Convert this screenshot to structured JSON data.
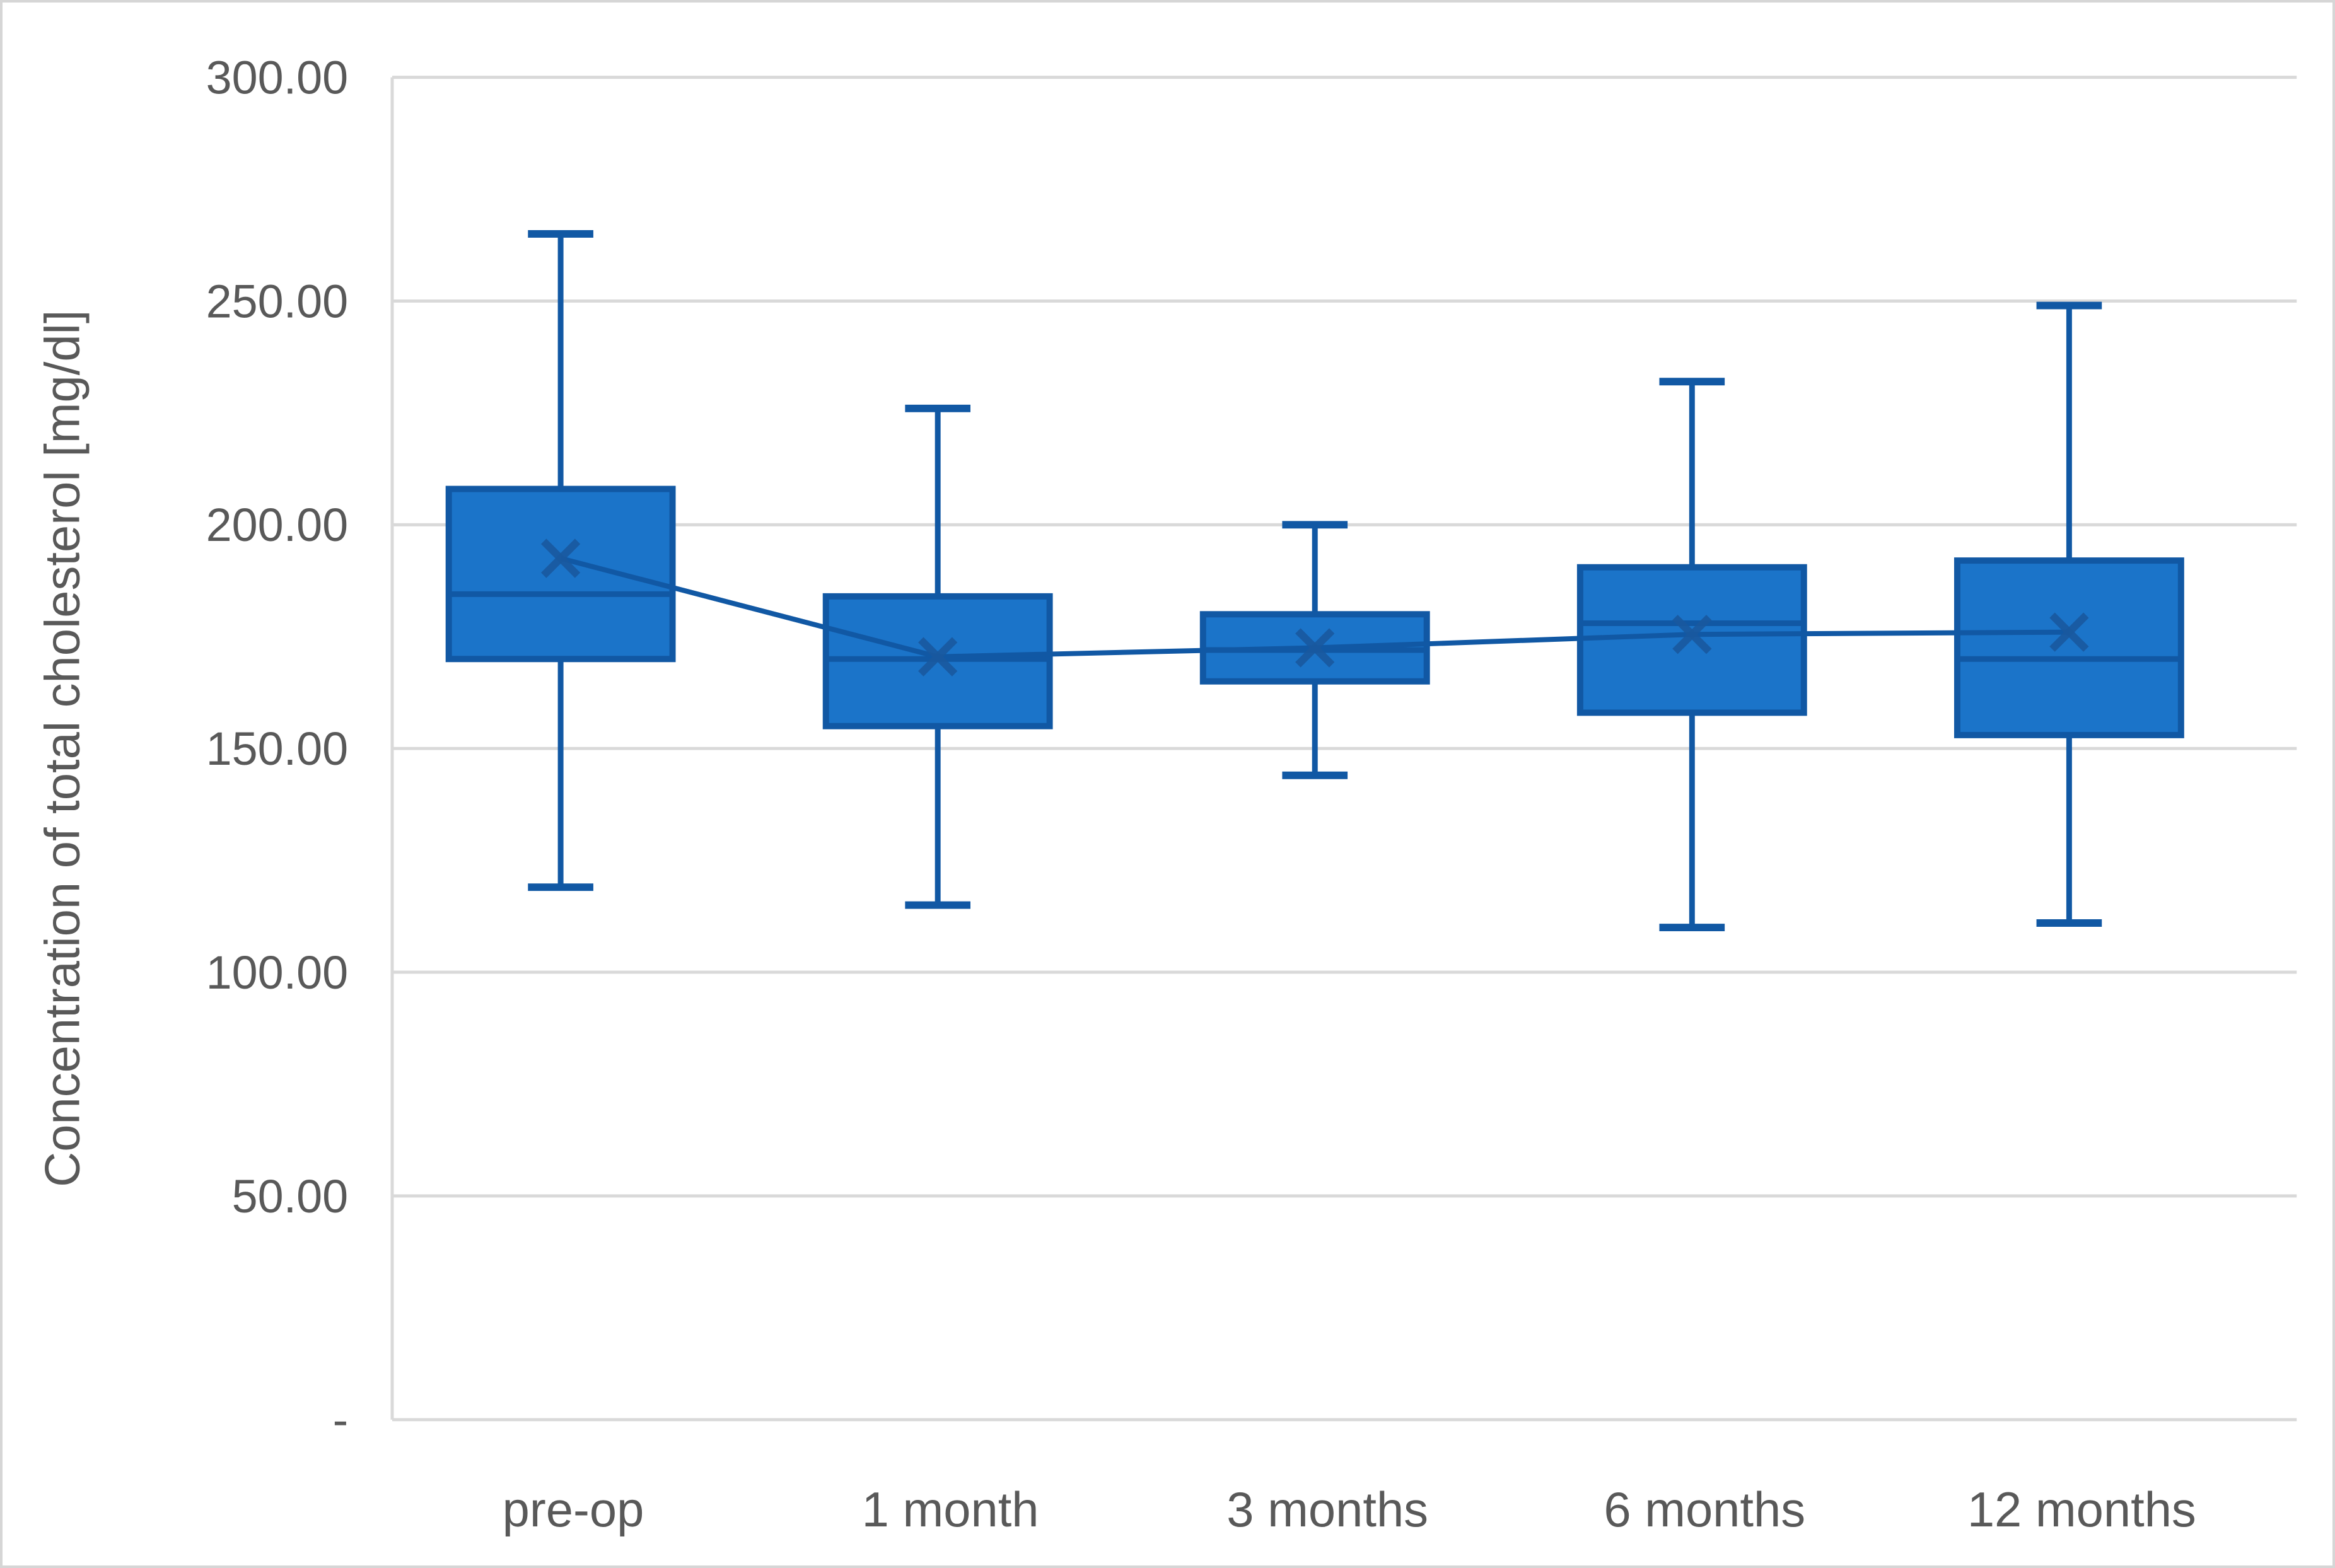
{
  "chart_data": {
    "type": "boxplot",
    "title": "",
    "ylabel": "Concentration of total cholesterol [mg/dl]",
    "xlabel": "",
    "categories": [
      "pre-op",
      "1 month",
      "3 months",
      "6 months",
      "12 months"
    ],
    "y_axis": {
      "min": 0,
      "max": 300,
      "step": 50,
      "tick_labels_bottom_to_top": [
        "-",
        "50.00",
        "100.00",
        "150.00",
        "200.00",
        "250.00",
        "300.00"
      ],
      "grid": true
    },
    "legend": null,
    "series": [
      {
        "category": "pre-op",
        "whisker_low": 119,
        "q1": 170,
        "median": 184.5,
        "mean": 192.5,
        "q3": 208,
        "whisker_high": 265
      },
      {
        "category": "1 month",
        "whisker_low": 115,
        "q1": 155,
        "median": 170,
        "mean": 170.5,
        "q3": 184,
        "whisker_high": 226
      },
      {
        "category": "3 months",
        "whisker_low": 144,
        "q1": 165,
        "median": 172,
        "mean": 172.5,
        "q3": 180,
        "whisker_high": 200
      },
      {
        "category": "6 months",
        "whisker_low": 110,
        "q1": 158,
        "median": 178,
        "mean": 175.5,
        "q3": 190.5,
        "whisker_high": 232
      },
      {
        "category": "12 months",
        "whisker_low": 111,
        "q1": 153,
        "median": 170,
        "mean": 176,
        "q3": 192,
        "whisker_high": 249
      }
    ],
    "mean_markers_connected_by_line": true,
    "colors": {
      "box_fill": "#1b74c9",
      "box_border": "#1158a4",
      "whisker": "#1158a4",
      "median_line": "#1158a4",
      "mean_marker": "#19599f",
      "mean_connector": "#1158a4",
      "gridline": "#d9d9d9",
      "axis_line": "#d9d9d9",
      "axis_text": "#595959",
      "background": "#ffffff"
    }
  }
}
